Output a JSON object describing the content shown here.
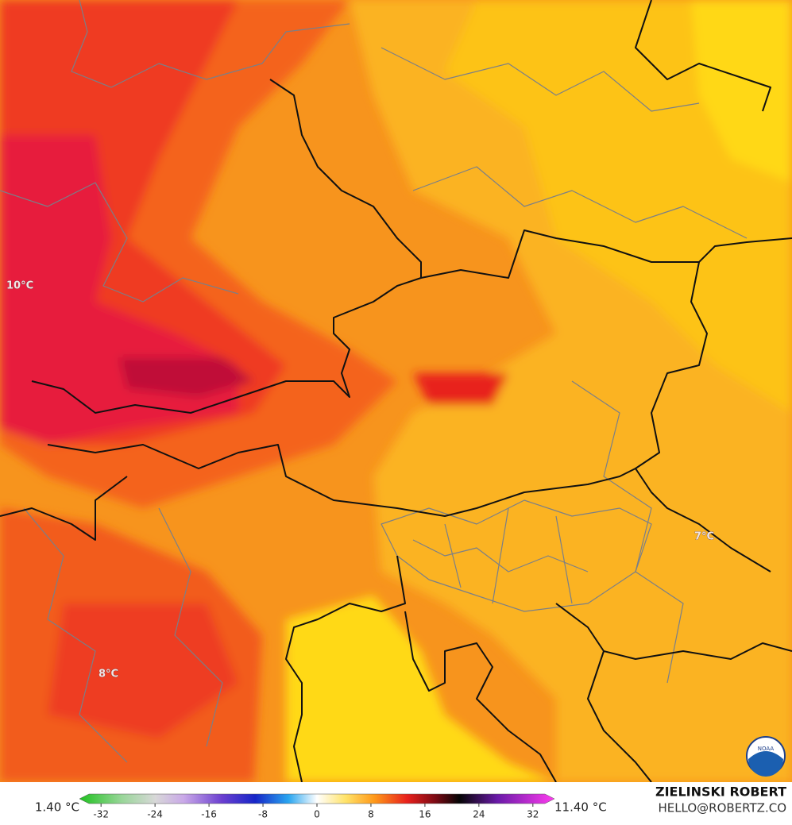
{
  "map_labels": [
    "10°C",
    "7°C",
    "8°C"
  ],
  "colorbar": {
    "min_label": "1.40 °C",
    "max_label": "11.40 °C",
    "range": [
      -35.2,
      35.2
    ],
    "ticks": [
      -32,
      -24,
      -16,
      -8,
      0,
      8,
      16,
      24,
      32
    ]
  },
  "credits": {
    "author": "ZIELINSKI ROBERT",
    "contact": "HELLO@ROBERTZ.CO"
  },
  "logo": {
    "text": "NOAA"
  }
}
